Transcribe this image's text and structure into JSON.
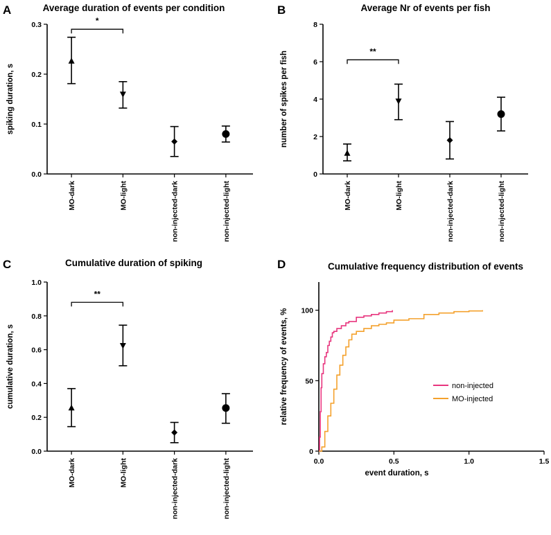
{
  "chart_data": [
    {
      "id": "A",
      "panel_letter": "A",
      "type": "scatter",
      "title": "Average duration of events per condition",
      "xlabel": "",
      "ylabel": "spiking duration, s",
      "categories": [
        "MO-dark",
        "MO-light",
        "non-injected-dark",
        "non-injected-light"
      ],
      "markers": [
        "triangle-up",
        "triangle-down",
        "diamond",
        "circle"
      ],
      "values": [
        0.226,
        0.16,
        0.065,
        0.08
      ],
      "err_low": [
        0.181,
        0.132,
        0.035,
        0.064
      ],
      "err_high": [
        0.274,
        0.185,
        0.095,
        0.096
      ],
      "ylim": [
        0,
        0.3
      ],
      "yticks": [
        0.0,
        0.1,
        0.2,
        0.3
      ],
      "ytick_labels": [
        "0.0",
        "0.1",
        "0.2",
        "0.3"
      ],
      "significance": [
        {
          "from": 0,
          "to": 1,
          "label": "*",
          "y": 0.29
        }
      ]
    },
    {
      "id": "B",
      "panel_letter": "B",
      "type": "scatter",
      "title": "Average Nr of events per fish",
      "xlabel": "",
      "ylabel": "number of spikes per fish",
      "categories": [
        "MO-dark",
        "MO-light",
        "non-injected-dark",
        "non-injected-light"
      ],
      "markers": [
        "triangle-up",
        "triangle-down",
        "diamond",
        "circle"
      ],
      "values": [
        1.1,
        3.9,
        1.8,
        3.2
      ],
      "err_low": [
        0.7,
        2.9,
        0.8,
        2.3
      ],
      "err_high": [
        1.6,
        4.8,
        2.8,
        4.1
      ],
      "ylim": [
        0,
        8
      ],
      "yticks": [
        0,
        2,
        4,
        6,
        8
      ],
      "ytick_labels": [
        "0",
        "2",
        "4",
        "6",
        "8"
      ],
      "significance": [
        {
          "from": 0,
          "to": 1,
          "label": "**",
          "y": 6.1
        }
      ]
    },
    {
      "id": "C",
      "panel_letter": "C",
      "type": "scatter",
      "title": "Cumulative duration of spiking",
      "xlabel": "",
      "ylabel": "cumulative duration, s",
      "categories": [
        "MO-dark",
        "MO-light",
        "non-injected-dark",
        "non-injected-light"
      ],
      "markers": [
        "triangle-up",
        "triangle-down",
        "diamond",
        "circle"
      ],
      "values": [
        0.255,
        0.625,
        0.11,
        0.255
      ],
      "err_low": [
        0.145,
        0.505,
        0.05,
        0.165
      ],
      "err_high": [
        0.37,
        0.745,
        0.17,
        0.34
      ],
      "ylim": [
        0,
        1.0
      ],
      "yticks": [
        0.0,
        0.2,
        0.4,
        0.6,
        0.8,
        1.0
      ],
      "ytick_labels": [
        "0.0",
        "0.2",
        "0.4",
        "0.6",
        "0.8",
        "1.0"
      ],
      "significance": [
        {
          "from": 0,
          "to": 1,
          "label": "**",
          "y": 0.88
        }
      ]
    },
    {
      "id": "D",
      "panel_letter": "D",
      "type": "line",
      "title": "Cumulative frequency distribution of events",
      "xlabel": "event duration, s",
      "ylabel": "relative frequency of events, %",
      "xlim": [
        0,
        1.5
      ],
      "ylim": [
        0,
        120
      ],
      "xticks": [
        0.0,
        0.5,
        1.0,
        1.5
      ],
      "xtick_labels": [
        "0.0",
        "0.5",
        "1.0",
        "1.5"
      ],
      "yticks": [
        0,
        50,
        100
      ],
      "ytick_labels": [
        "0",
        "50",
        "100"
      ],
      "legend_position": "center-right",
      "series": [
        {
          "name": "non-injected",
          "color": "#e8357e",
          "points": [
            [
              0,
              0
            ],
            [
              0.005,
              10
            ],
            [
              0.01,
              28
            ],
            [
              0.015,
              45
            ],
            [
              0.02,
              55
            ],
            [
              0.03,
              62
            ],
            [
              0.04,
              67
            ],
            [
              0.05,
              70
            ],
            [
              0.06,
              75
            ],
            [
              0.07,
              78
            ],
            [
              0.08,
              81
            ],
            [
              0.09,
              84
            ],
            [
              0.1,
              85
            ],
            [
              0.12,
              87
            ],
            [
              0.15,
              89
            ],
            [
              0.18,
              91
            ],
            [
              0.2,
              92
            ],
            [
              0.25,
              95
            ],
            [
              0.3,
              96
            ],
            [
              0.35,
              97
            ],
            [
              0.4,
              98
            ],
            [
              0.45,
              99
            ],
            [
              0.49,
              100
            ]
          ]
        },
        {
          "name": "MO-injected",
          "color": "#f4a12c",
          "points": [
            [
              0,
              0
            ],
            [
              0.02,
              3
            ],
            [
              0.04,
              14
            ],
            [
              0.06,
              25
            ],
            [
              0.08,
              34
            ],
            [
              0.1,
              44
            ],
            [
              0.12,
              54
            ],
            [
              0.14,
              61
            ],
            [
              0.16,
              68
            ],
            [
              0.18,
              74
            ],
            [
              0.2,
              79
            ],
            [
              0.22,
              83
            ],
            [
              0.25,
              85
            ],
            [
              0.3,
              87
            ],
            [
              0.35,
              89
            ],
            [
              0.4,
              90
            ],
            [
              0.45,
              91
            ],
            [
              0.5,
              93
            ],
            [
              0.6,
              94
            ],
            [
              0.7,
              97
            ],
            [
              0.8,
              98
            ],
            [
              0.9,
              99
            ],
            [
              1.0,
              99.5
            ],
            [
              1.09,
              100
            ]
          ]
        }
      ]
    }
  ]
}
